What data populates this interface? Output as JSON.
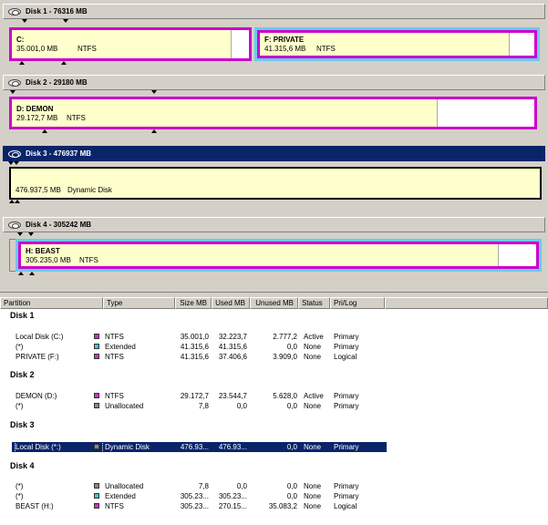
{
  "disks": [
    {
      "title": "Disk 1 - 76316 MB",
      "selected": false,
      "partitions": [
        {
          "name": "C:",
          "size": "35.001,0 MB",
          "fs": "NTFS"
        },
        {
          "name": "F:  PRIVATE",
          "size": "41.315,6 MB",
          "fs": "NTFS"
        }
      ]
    },
    {
      "title": "Disk 2 - 29180 MB",
      "selected": false,
      "partitions": [
        {
          "name": "D:  DEMON",
          "size": "29.172,7 MB",
          "fs": "NTFS"
        }
      ]
    },
    {
      "title": "Disk 3 - 476937 MB",
      "selected": true,
      "partitions": [
        {
          "name": "",
          "size": "476.937,5 MB",
          "fs": "Dynamic Disk"
        }
      ]
    },
    {
      "title": "Disk 4 - 305242 MB",
      "selected": false,
      "partitions": [
        {
          "name": "H:  BEAST",
          "size": "305.235,0 MB",
          "fs": "NTFS"
        }
      ]
    }
  ],
  "table": {
    "headers": [
      "Partition",
      "Type",
      "Size MB",
      "Used MB",
      "Unused MB",
      "Status",
      "Pri/Log"
    ],
    "groups": [
      {
        "label": "Disk 1",
        "rows": [
          {
            "partition": "Local Disk (C:)",
            "type": "NTFS",
            "swatch": "#cc33cc",
            "size": "35.001,0",
            "used": "32.223,7",
            "unused": "2.777,2",
            "status": "Active",
            "prilog": "Primary"
          },
          {
            "partition": "(*)",
            "type": "Extended",
            "swatch": "#33cccc",
            "size": "41.315,6",
            "used": "41.315,6",
            "unused": "0,0",
            "status": "None",
            "prilog": "Primary"
          },
          {
            "partition": "PRIVATE (F:)",
            "type": "NTFS",
            "swatch": "#cc33cc",
            "size": "41.315,6",
            "used": "37.406,6",
            "unused": "3.909,0",
            "status": "None",
            "prilog": "Logical"
          }
        ]
      },
      {
        "label": "Disk 2",
        "rows": [
          {
            "partition": "DEMON (D:)",
            "type": "NTFS",
            "swatch": "#cc33cc",
            "size": "29.172,7",
            "used": "23.544,7",
            "unused": "5.628,0",
            "status": "Active",
            "prilog": "Primary"
          },
          {
            "partition": "(*)",
            "type": "Unallocated",
            "swatch": "#888888",
            "size": "7,8",
            "used": "0,0",
            "unused": "0,0",
            "status": "None",
            "prilog": "Primary"
          }
        ]
      },
      {
        "label": "Disk 3",
        "rows": [
          {
            "partition": "Local Disk (*:)",
            "type": "Dynamic Disk",
            "swatch": "#888888",
            "size": "476.93...",
            "used": "476.93...",
            "unused": "0,0",
            "status": "None",
            "prilog": "Primary"
          }
        ]
      },
      {
        "label": "Disk 4",
        "rows": [
          {
            "partition": "(*)",
            "type": "Unallocated",
            "swatch": "#888888",
            "size": "7,8",
            "used": "0,0",
            "unused": "0,0",
            "status": "None",
            "prilog": "Primary"
          },
          {
            "partition": "(*)",
            "type": "Extended",
            "swatch": "#33cccc",
            "size": "305.23...",
            "used": "305.23...",
            "unused": "0,0",
            "status": "None",
            "prilog": "Primary"
          },
          {
            "partition": "BEAST (H:)",
            "type": "NTFS",
            "swatch": "#cc33cc",
            "size": "305.23...",
            "used": "270.15...",
            "unused": "35.083,2",
            "status": "None",
            "prilog": "Logical"
          }
        ]
      }
    ]
  },
  "colors": {
    "primary_ntfs": "#cc00cc",
    "extended": "#66ccee",
    "partition_fill": "#ffffcc",
    "selection": "#0a246a"
  }
}
